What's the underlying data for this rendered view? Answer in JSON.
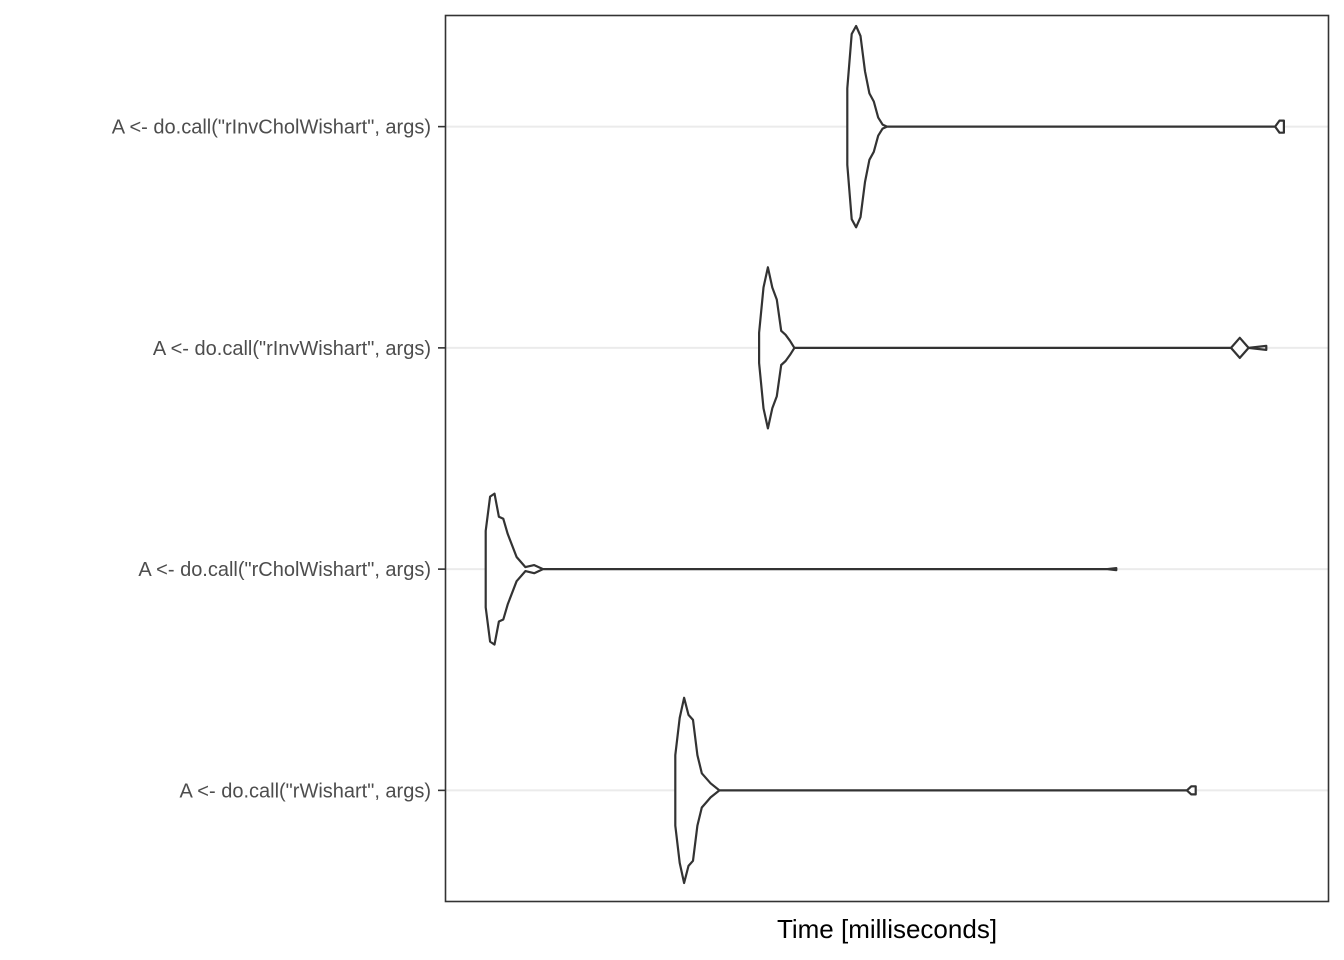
{
  "chart_data": {
    "type": "violin",
    "title": "",
    "xlabel": "Time [milliseconds]",
    "ylabel": "",
    "x_tick_labels": [],
    "grid": "horizontal-major",
    "legend": "none",
    "colors": {
      "outline": "#333333",
      "grid": "#ebebeb",
      "panel_border": "#333333",
      "label": "#4d4d4d"
    },
    "categories": [
      "A <- do.call(\"rInvCholWishart\", args)",
      "A <- do.call(\"rInvWishart\", args)",
      "A <- do.call(\"rCholWishart\", args)",
      "A <- do.call(\"rWishart\", args)"
    ],
    "series": [
      {
        "category": "A <- do.call(\"rInvCholWishart\", args)",
        "min": 0.455,
        "max": 0.95,
        "density_profile": [
          [
            0.455,
            0.38
          ],
          [
            0.46,
            0.92
          ],
          [
            0.465,
            1.0
          ],
          [
            0.47,
            0.9
          ],
          [
            0.475,
            0.55
          ],
          [
            0.48,
            0.33
          ],
          [
            0.485,
            0.25
          ],
          [
            0.49,
            0.09
          ],
          [
            0.495,
            0.02
          ],
          [
            0.5,
            0.0
          ],
          [
            0.94,
            0.0
          ],
          [
            0.945,
            0.06
          ],
          [
            0.95,
            0.06
          ]
        ]
      },
      {
        "category": "A <- do.call(\"rInvWishart\", args)",
        "min": 0.355,
        "max": 0.93,
        "density_profile": [
          [
            0.355,
            0.15
          ],
          [
            0.36,
            0.6
          ],
          [
            0.365,
            0.8
          ],
          [
            0.37,
            0.6
          ],
          [
            0.375,
            0.48
          ],
          [
            0.38,
            0.17
          ],
          [
            0.385,
            0.13
          ],
          [
            0.39,
            0.07
          ],
          [
            0.395,
            0.0
          ],
          [
            0.89,
            0.0
          ],
          [
            0.9,
            0.1
          ],
          [
            0.91,
            0.0
          ],
          [
            0.93,
            0.02
          ]
        ]
      },
      {
        "category": "A <- do.call(\"rCholWishart\", args)",
        "min": 0.045,
        "max": 0.76,
        "density_profile": [
          [
            0.045,
            0.38
          ],
          [
            0.05,
            0.72
          ],
          [
            0.055,
            0.75
          ],
          [
            0.06,
            0.52
          ],
          [
            0.065,
            0.5
          ],
          [
            0.07,
            0.35
          ],
          [
            0.08,
            0.12
          ],
          [
            0.09,
            0.02
          ],
          [
            0.1,
            0.04
          ],
          [
            0.11,
            0.0
          ],
          [
            0.75,
            0.0
          ],
          [
            0.76,
            0.01
          ]
        ]
      },
      {
        "category": "A <- do.call(\"rWishart\", args)",
        "min": 0.26,
        "max": 0.85,
        "density_profile": [
          [
            0.26,
            0.35
          ],
          [
            0.265,
            0.72
          ],
          [
            0.27,
            0.92
          ],
          [
            0.275,
            0.75
          ],
          [
            0.28,
            0.7
          ],
          [
            0.285,
            0.35
          ],
          [
            0.29,
            0.17
          ],
          [
            0.295,
            0.12
          ],
          [
            0.3,
            0.07
          ],
          [
            0.31,
            0.0
          ],
          [
            0.84,
            0.0
          ],
          [
            0.845,
            0.04
          ],
          [
            0.85,
            0.04
          ]
        ]
      }
    ]
  }
}
